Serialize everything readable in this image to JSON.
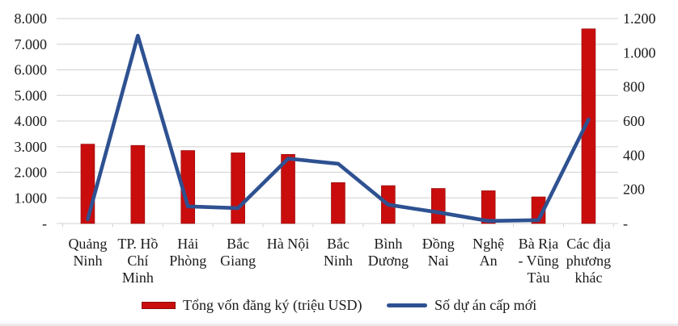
{
  "chart_data": {
    "type": "bar",
    "subtype": "combo-bar-line-dual-axis",
    "categories": [
      "Quảng Ninh",
      "TP. Hồ Chí Minh",
      "Hải Phòng",
      "Bắc Giang",
      "Hà Nội",
      "Bắc Ninh",
      "Bình Dương",
      "Đồng Nai",
      "Nghệ An",
      "Bà Rịa - Vũng Tàu",
      "Các địa phương khác"
    ],
    "category_label_lines": [
      [
        "Quảng",
        "Ninh"
      ],
      [
        "TP. Hồ",
        "Chí",
        "Minh"
      ],
      [
        "Hải",
        "Phòng"
      ],
      [
        "Bắc",
        "Giang"
      ],
      [
        "Hà Nội"
      ],
      [
        "Bắc",
        "Ninh"
      ],
      [
        "Bình",
        "Dương"
      ],
      [
        "Đồng",
        "Nai"
      ],
      [
        "Nghệ",
        "An"
      ],
      [
        "Bà Rịa",
        "- Vũng",
        "Tàu"
      ],
      [
        "Các địa",
        "phương",
        "khác"
      ]
    ],
    "series": [
      {
        "name": "Tổng vốn đăng ký (triệu USD)",
        "type": "bar",
        "axis": "left",
        "color": "#C90D0D",
        "values": [
          3100,
          3050,
          2850,
          2760,
          2700,
          1600,
          1480,
          1370,
          1280,
          1040,
          7600
        ]
      },
      {
        "name": "Số dự án cấp mới",
        "type": "line",
        "axis": "right",
        "color": "#2E5191",
        "values": [
          25,
          1100,
          100,
          90,
          380,
          350,
          110,
          65,
          15,
          20,
          610
        ]
      }
    ],
    "left_axis": {
      "min": 0,
      "max": 8000,
      "step": 1000,
      "tick_labels_top_to_bottom": [
        "8.000",
        "7.000",
        "6.000",
        "5.000",
        "4.000",
        "3.000",
        "2.000",
        "1.000",
        "-"
      ]
    },
    "right_axis": {
      "min": 0,
      "max": 1200,
      "step": 200,
      "tick_labels_top_to_bottom": [
        "1.200",
        "1.000",
        "800",
        "600",
        "400",
        "200",
        "-"
      ]
    },
    "grid": true,
    "legend_position": "bottom",
    "title": ""
  },
  "legend": {
    "bar_label": "Tổng vốn đăng ký (triệu USD)",
    "line_label": "Số dự án cấp mới"
  },
  "colors": {
    "bar": "#C90D0D",
    "bar_edge": "#8f0b0b",
    "line": "#2E5191",
    "grid": "#D9D9D9",
    "text": "#1A1A1A",
    "background": "#FFFFFF"
  }
}
